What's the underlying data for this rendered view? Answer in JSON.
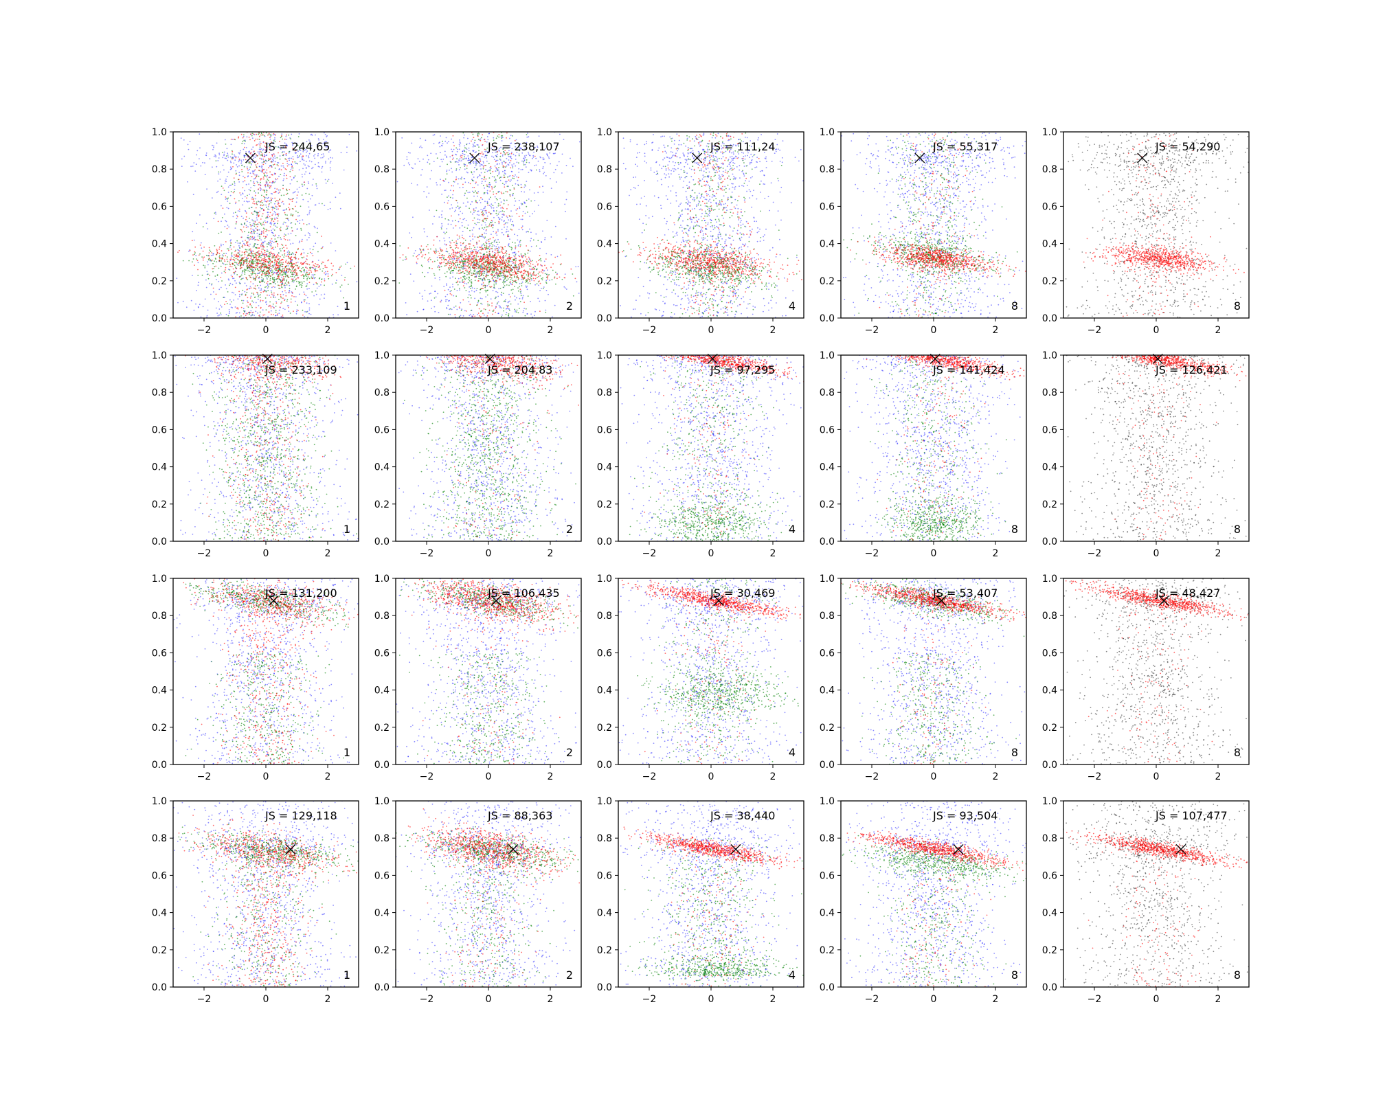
{
  "colors": {
    "background": "#ffffff",
    "axes": "#000000",
    "series": {
      "blue": "#0000ff",
      "green": "#008000",
      "red": "#ff0000",
      "black": "#000000"
    }
  },
  "chart_data": {
    "type": "scatter",
    "grid": {
      "rows": 4,
      "cols": 5
    },
    "xlim": [
      -3,
      3
    ],
    "ylim": [
      0,
      1
    ],
    "xticks": [
      -2,
      0,
      2
    ],
    "xtick_labels": [
      "−2",
      "0",
      "2"
    ],
    "yticks": [
      0.0,
      0.2,
      0.4,
      0.6,
      0.8,
      1.0
    ],
    "ytick_labels": [
      "0.0",
      "0.2",
      "0.4",
      "0.6",
      "0.8",
      "1.0"
    ],
    "marker": "x",
    "panels": [
      {
        "row": 0,
        "col": 0,
        "js": "JS = 244,65",
        "label": "1",
        "series": [
          "blue",
          "green",
          "red"
        ],
        "target": [
          -0.5,
          0.86
        ]
      },
      {
        "row": 0,
        "col": 1,
        "js": "JS = 238,107",
        "label": "2",
        "series": [
          "blue",
          "green",
          "red"
        ],
        "target": [
          -0.45,
          0.86
        ]
      },
      {
        "row": 0,
        "col": 2,
        "js": "JS = 111,24",
        "label": "4",
        "series": [
          "blue",
          "green",
          "red"
        ],
        "target": [
          -0.45,
          0.86
        ]
      },
      {
        "row": 0,
        "col": 3,
        "js": "JS = 55,317",
        "label": "8",
        "series": [
          "blue",
          "green",
          "red"
        ],
        "target": [
          -0.45,
          0.86
        ]
      },
      {
        "row": 0,
        "col": 4,
        "js": "JS = 54,290",
        "label": "8",
        "series": [
          "black",
          "red"
        ],
        "target": [
          -0.45,
          0.86
        ]
      },
      {
        "row": 1,
        "col": 0,
        "js": "JS = 233,109",
        "label": "1",
        "series": [
          "blue",
          "green",
          "red"
        ],
        "target": [
          0.05,
          0.98
        ]
      },
      {
        "row": 1,
        "col": 1,
        "js": "JS = 204,83",
        "label": "2",
        "series": [
          "blue",
          "green",
          "red"
        ],
        "target": [
          0.05,
          0.98
        ]
      },
      {
        "row": 1,
        "col": 2,
        "js": "JS = 97,295",
        "label": "4",
        "series": [
          "blue",
          "green",
          "red"
        ],
        "target": [
          0.05,
          0.98
        ]
      },
      {
        "row": 1,
        "col": 3,
        "js": "JS = 141,424",
        "label": "8",
        "series": [
          "blue",
          "green",
          "red"
        ],
        "target": [
          0.05,
          0.98
        ]
      },
      {
        "row": 1,
        "col": 4,
        "js": "JS = 126,421",
        "label": "8",
        "series": [
          "black",
          "red"
        ],
        "target": [
          0.05,
          0.98
        ]
      },
      {
        "row": 2,
        "col": 0,
        "js": "JS = 131,200",
        "label": "1",
        "series": [
          "blue",
          "green",
          "red"
        ],
        "target": [
          0.25,
          0.88
        ]
      },
      {
        "row": 2,
        "col": 1,
        "js": "JS = 106,435",
        "label": "2",
        "series": [
          "blue",
          "green",
          "red"
        ],
        "target": [
          0.25,
          0.88
        ]
      },
      {
        "row": 2,
        "col": 2,
        "js": "JS = 30,469",
        "label": "4",
        "series": [
          "blue",
          "green",
          "red"
        ],
        "target": [
          0.25,
          0.88
        ]
      },
      {
        "row": 2,
        "col": 3,
        "js": "JS = 53,407",
        "label": "8",
        "series": [
          "blue",
          "green",
          "red"
        ],
        "target": [
          0.25,
          0.88
        ]
      },
      {
        "row": 2,
        "col": 4,
        "js": "JS = 48,427",
        "label": "8",
        "series": [
          "black",
          "red"
        ],
        "target": [
          0.25,
          0.88
        ]
      },
      {
        "row": 3,
        "col": 0,
        "js": "JS = 129,118",
        "label": "1",
        "series": [
          "blue",
          "green",
          "red"
        ],
        "target": [
          0.8,
          0.74
        ]
      },
      {
        "row": 3,
        "col": 1,
        "js": "JS = 88,363",
        "label": "2",
        "series": [
          "blue",
          "green",
          "red"
        ],
        "target": [
          0.8,
          0.74
        ]
      },
      {
        "row": 3,
        "col": 2,
        "js": "JS = 38,440",
        "label": "4",
        "series": [
          "blue",
          "green",
          "red"
        ],
        "target": [
          0.8,
          0.74
        ]
      },
      {
        "row": 3,
        "col": 3,
        "js": "JS = 93,504",
        "label": "8",
        "series": [
          "blue",
          "green",
          "red"
        ],
        "target": [
          0.8,
          0.74
        ]
      },
      {
        "row": 3,
        "col": 4,
        "js": "JS = 107,477",
        "label": "8",
        "series": [
          "black",
          "red"
        ],
        "target": [
          0.8,
          0.74
        ]
      }
    ]
  }
}
